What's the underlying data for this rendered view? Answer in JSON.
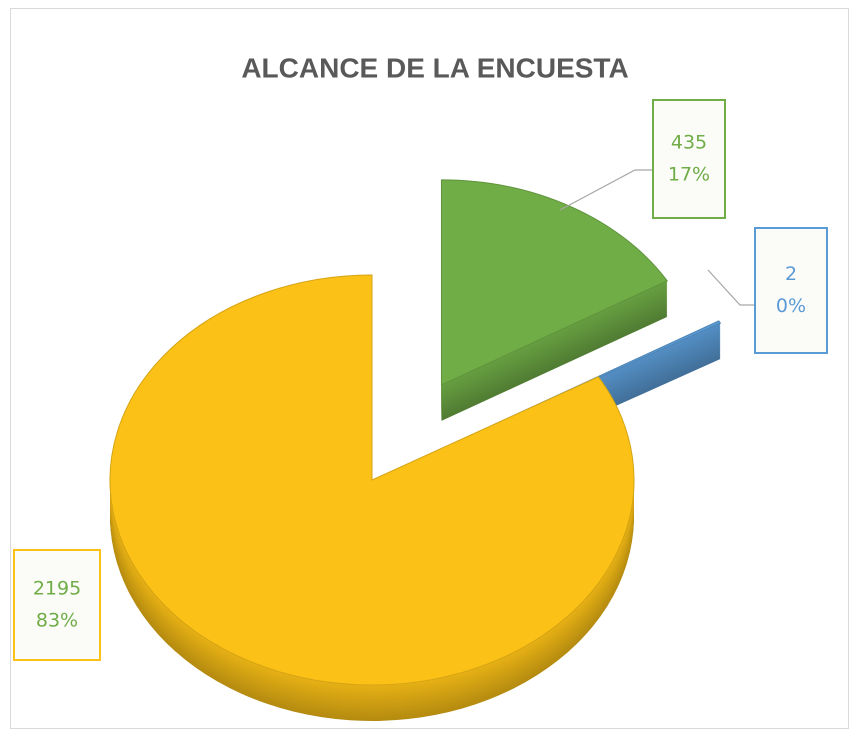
{
  "chart_data": {
    "type": "pie3d",
    "title": "ALCANCE DE LA ENCUESTA",
    "values": [
      435,
      2,
      2195
    ],
    "percentages": [
      17,
      0,
      83
    ],
    "percentage_labels": [
      "17%",
      "0%",
      "83%"
    ],
    "colors": [
      "#70ad47",
      "#5b9bd5",
      "#fbc117"
    ],
    "label_colors": [
      "#70ad47",
      "#5b9bd5",
      "#70ad47"
    ],
    "label_borders": [
      "#70ad47",
      "#5b9bd5",
      "#fbc117"
    ]
  }
}
